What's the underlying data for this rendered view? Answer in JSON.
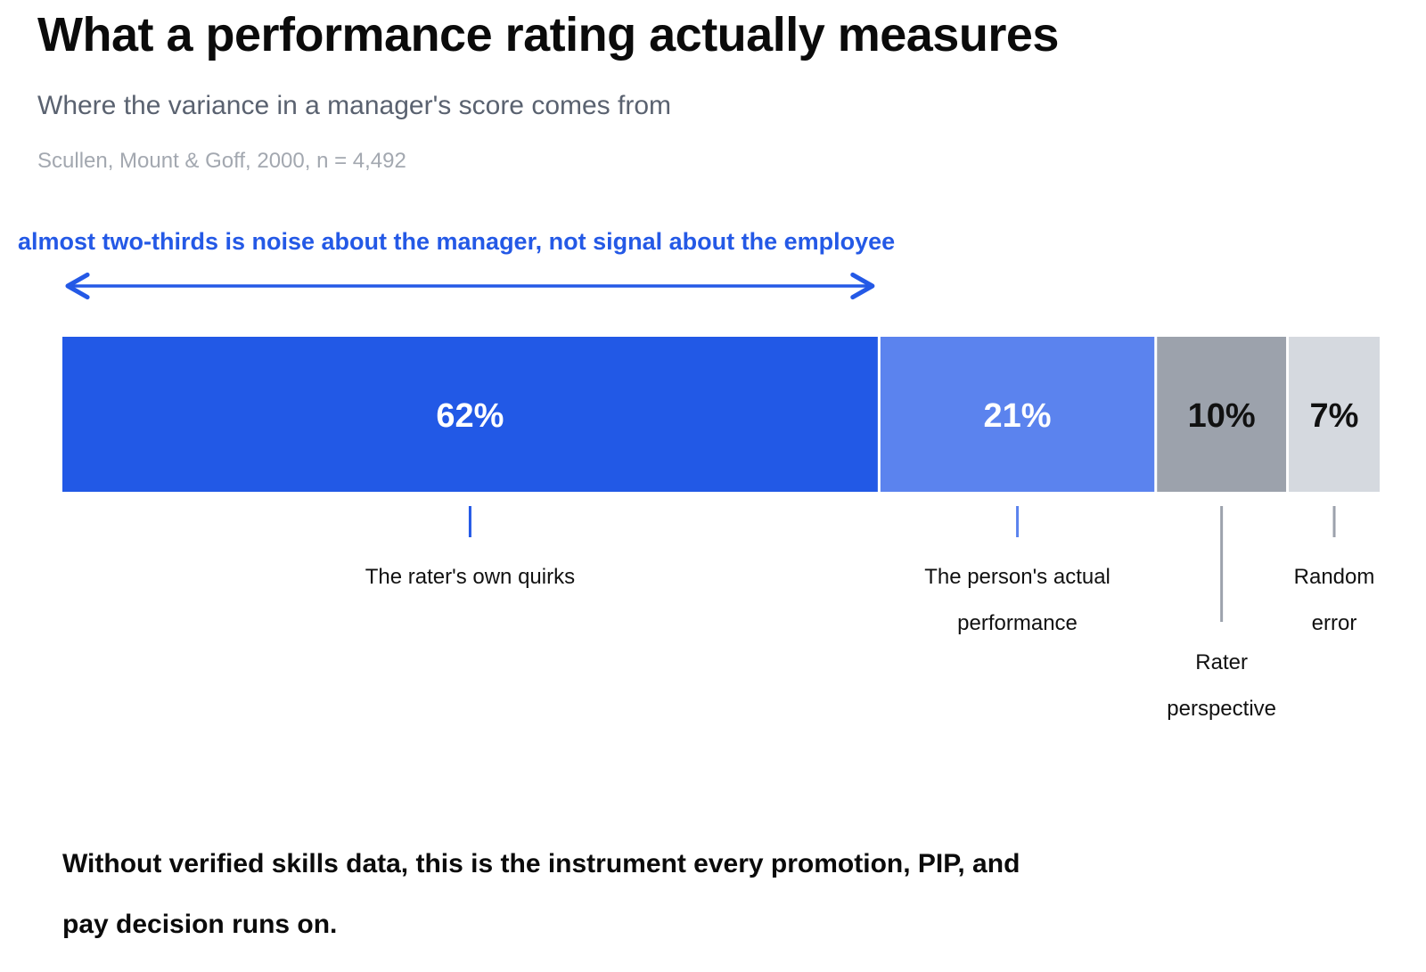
{
  "title": "What a performance rating actually measures",
  "subtitle": "Where the variance in a manager's score comes from",
  "source": "Scullen, Mount & Goff, 2000, n = 4,492",
  "takeaway": "Without verified skills data, this is the instrument every promotion, PIP, and pay decision runs on.",
  "chart_data": {
    "type": "bar",
    "orientation": "horizontal-stacked-100",
    "annotation": {
      "text": "almost two-thirds is noise about the manager, not signal about the employee",
      "spans_segments": [
        0
      ],
      "color": "#2459e6"
    },
    "segments": [
      {
        "label_lines": [
          "The rater's own quirks"
        ],
        "value": 62,
        "display": "62%",
        "color": "#2259e6",
        "text_color": "#ffffff",
        "label_row": 0
      },
      {
        "label_lines": [
          "The person's actual",
          "performance"
        ],
        "value": 21,
        "display": "21%",
        "color": "#5b83ee",
        "text_color": "#ffffff",
        "label_row": 0
      },
      {
        "label_lines": [
          "Rater",
          "perspective"
        ],
        "value": 10,
        "display": "10%",
        "color": "#9ca2ac",
        "text_color": "#111111",
        "label_row": 1
      },
      {
        "label_lines": [
          "Random",
          "error"
        ],
        "value": 7,
        "display": "7%",
        "color": "#d5d9df",
        "text_color": "#111111",
        "label_row": 0
      }
    ],
    "leader_colors": [
      "#2459e6",
      "#5b83ee",
      "#9ca2ac",
      "#9ca2ac"
    ],
    "total": 100
  }
}
